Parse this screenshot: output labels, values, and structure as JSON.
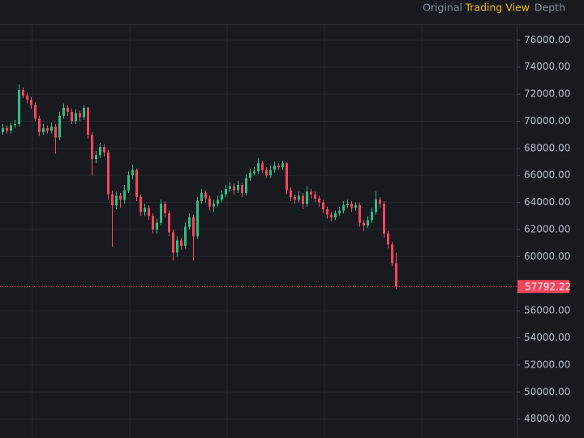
{
  "tabs": [
    "Original",
    "Trading View",
    "Depth"
  ],
  "active_tab": 1,
  "chart_data": {
    "type": "candlestick",
    "up_color": "#2ebd85",
    "down_color": "#f6465d",
    "grid": true,
    "ylim": [
      46600,
      77100
    ],
    "yticks": [
      {
        "value": 76000,
        "label": "76000.00"
      },
      {
        "value": 74000,
        "label": "74000.00"
      },
      {
        "value": 72000,
        "label": "72000.00"
      },
      {
        "value": 70000,
        "label": "70000.00"
      },
      {
        "value": 68000,
        "label": "68000.00"
      },
      {
        "value": 66000,
        "label": "66000.00"
      },
      {
        "value": 64000,
        "label": "64000.00"
      },
      {
        "value": 62000,
        "label": "62000.00"
      },
      {
        "value": 60000,
        "label": "60000.00"
      },
      {
        "value": 56000,
        "label": "56000.00"
      },
      {
        "value": 54000,
        "label": "54000.00"
      },
      {
        "value": 52000,
        "label": "52000.00"
      },
      {
        "value": 50000,
        "label": "50000.00"
      },
      {
        "value": 48000,
        "label": "48000.00"
      }
    ],
    "last_price": 57792.22,
    "open": [
      69200,
      69500,
      69300,
      69700,
      69800,
      72300,
      71900,
      71600,
      71200,
      70200,
      69200,
      69500,
      69300,
      69600,
      68800,
      70400,
      71000,
      70700,
      70000,
      70600,
      70300,
      71000,
      69000,
      67200,
      67500,
      68100,
      67700,
      64600,
      63800,
      64500,
      64200,
      64900,
      66000,
      66400,
      64400,
      63300,
      63600,
      63000,
      62000,
      62500,
      63900,
      63200,
      61800,
      60300,
      61200,
      60800,
      62200,
      62900,
      61500,
      64100,
      64700,
      64300,
      63700,
      63900,
      64200,
      64600,
      65000,
      65200,
      64900,
      65300,
      64700,
      65800,
      66200,
      66300,
      66900,
      66400,
      66000,
      66400,
      66700,
      66600,
      66900,
      64900,
      64400,
      64200,
      64500,
      63900,
      64800,
      64600,
      64300,
      64000,
      63500,
      63100,
      62900,
      63200,
      63400,
      63800,
      63900,
      63600,
      63800,
      62500,
      62300,
      62700,
      63300,
      64200,
      63900,
      61700,
      60900,
      59500
    ],
    "high": [
      69800,
      69700,
      69900,
      70100,
      72700,
      72500,
      72100,
      71800,
      71400,
      70400,
      69800,
      69700,
      69900,
      69800,
      70700,
      71300,
      71200,
      70900,
      70900,
      70800,
      71200,
      71100,
      69200,
      67800,
      68400,
      68300,
      67900,
      64900,
      64800,
      64700,
      65300,
      66300,
      66800,
      66500,
      64600,
      63900,
      63800,
      63200,
      62800,
      64200,
      64100,
      63400,
      62000,
      61500,
      61400,
      62500,
      63200,
      63100,
      64400,
      65000,
      64900,
      64500,
      64200,
      64500,
      64900,
      65300,
      65500,
      65400,
      65600,
      65500,
      66100,
      66500,
      66600,
      67300,
      67100,
      66600,
      66700,
      67000,
      66900,
      67100,
      67000,
      65100,
      64600,
      64800,
      64700,
      65200,
      65000,
      64800,
      64500,
      64200,
      63700,
      63300,
      63400,
      63700,
      64100,
      64200,
      64100,
      64000,
      64000,
      62700,
      63000,
      63600,
      64800,
      64400,
      64100,
      61900,
      61100,
      60300
    ],
    "low": [
      69000,
      69100,
      69100,
      69500,
      69600,
      71700,
      71300,
      70900,
      70000,
      68900,
      69000,
      69100,
      69100,
      67600,
      68600,
      70200,
      70400,
      69800,
      69800,
      70000,
      70100,
      68700,
      66000,
      66900,
      67300,
      67400,
      64200,
      60700,
      63500,
      63600,
      63900,
      64700,
      65700,
      64100,
      63000,
      63000,
      62700,
      61700,
      61700,
      62300,
      62900,
      61500,
      59700,
      60000,
      60500,
      60600,
      62000,
      59700,
      61300,
      63900,
      64000,
      63400,
      63300,
      63700,
      64000,
      64400,
      64800,
      64600,
      64700,
      64400,
      64500,
      65600,
      66000,
      66100,
      66200,
      65800,
      65800,
      66200,
      66400,
      66400,
      64600,
      64100,
      63900,
      64000,
      63500,
      63700,
      64300,
      64000,
      63700,
      63200,
      62800,
      62600,
      62700,
      63000,
      63200,
      63600,
      63300,
      63400,
      62200,
      61900,
      62100,
      62500,
      63100,
      63600,
      61400,
      60600,
      59300,
      57600
    ],
    "close": [
      69500,
      69300,
      69700,
      69800,
      72300,
      71900,
      71600,
      71200,
      70200,
      69200,
      69500,
      69300,
      69600,
      68800,
      70400,
      71000,
      70700,
      70000,
      70600,
      70300,
      71000,
      69000,
      67200,
      67500,
      68100,
      67700,
      64600,
      63800,
      64500,
      64200,
      64900,
      66000,
      66400,
      64400,
      63300,
      63600,
      63000,
      62000,
      62500,
      63900,
      63200,
      61800,
      60300,
      61200,
      60800,
      62200,
      62900,
      61500,
      64100,
      64700,
      64300,
      63700,
      63900,
      64200,
      64600,
      65000,
      65200,
      64900,
      65300,
      64700,
      65800,
      66200,
      66300,
      66900,
      66400,
      66000,
      66400,
      66700,
      66600,
      66900,
      64900,
      64400,
      64200,
      64500,
      63900,
      64800,
      64600,
      64300,
      64000,
      63500,
      63100,
      62900,
      63200,
      63400,
      63800,
      63900,
      63600,
      63800,
      62500,
      62300,
      62700,
      63300,
      64200,
      63900,
      61700,
      60900,
      59500,
      57792.22
    ]
  }
}
